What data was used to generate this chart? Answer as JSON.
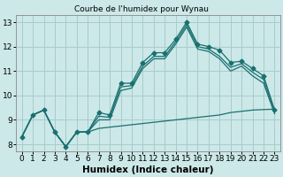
{
  "title": "Courbe de l'humidex pour Wynau",
  "xlabel": "Humidex (Indice chaleur)",
  "xlim": [
    -0.5,
    23.5
  ],
  "ylim": [
    7.7,
    13.3
  ],
  "xticks": [
    0,
    1,
    2,
    3,
    4,
    5,
    6,
    7,
    8,
    9,
    10,
    11,
    12,
    13,
    14,
    15,
    16,
    17,
    18,
    19,
    20,
    21,
    22,
    23
  ],
  "yticks": [
    8,
    9,
    10,
    11,
    12,
    13
  ],
  "bg_color": "#cce8e8",
  "grid_color": "#a8cccc",
  "line_color": "#1a7070",
  "series": {
    "upper": [
      8.3,
      9.2,
      9.4,
      8.5,
      7.9,
      8.5,
      8.5,
      9.3,
      9.2,
      10.5,
      10.5,
      11.35,
      11.75,
      11.75,
      12.3,
      13.0,
      12.1,
      12.0,
      11.85,
      11.35,
      11.4,
      11.1,
      10.8,
      9.4
    ],
    "mid_upper": [
      8.3,
      9.2,
      9.4,
      8.5,
      7.9,
      8.5,
      8.5,
      9.15,
      9.1,
      10.35,
      10.4,
      11.2,
      11.6,
      11.6,
      12.2,
      12.9,
      12.0,
      11.9,
      11.6,
      11.15,
      11.3,
      10.95,
      10.65,
      9.35
    ],
    "mid_lower": [
      8.3,
      9.2,
      9.4,
      8.5,
      7.9,
      8.5,
      8.5,
      9.0,
      9.0,
      10.2,
      10.3,
      11.1,
      11.5,
      11.5,
      12.1,
      12.8,
      11.9,
      11.8,
      11.5,
      11.0,
      11.2,
      10.8,
      10.5,
      9.25
    ],
    "lower": [
      8.3,
      9.2,
      9.4,
      8.5,
      7.9,
      8.5,
      8.5,
      8.65,
      8.7,
      8.75,
      8.8,
      8.85,
      8.9,
      8.95,
      9.0,
      9.05,
      9.1,
      9.15,
      9.2,
      9.3,
      9.35,
      9.4,
      9.42,
      9.44
    ]
  },
  "tick_fontsize": 6.5,
  "label_fontsize": 7.5
}
